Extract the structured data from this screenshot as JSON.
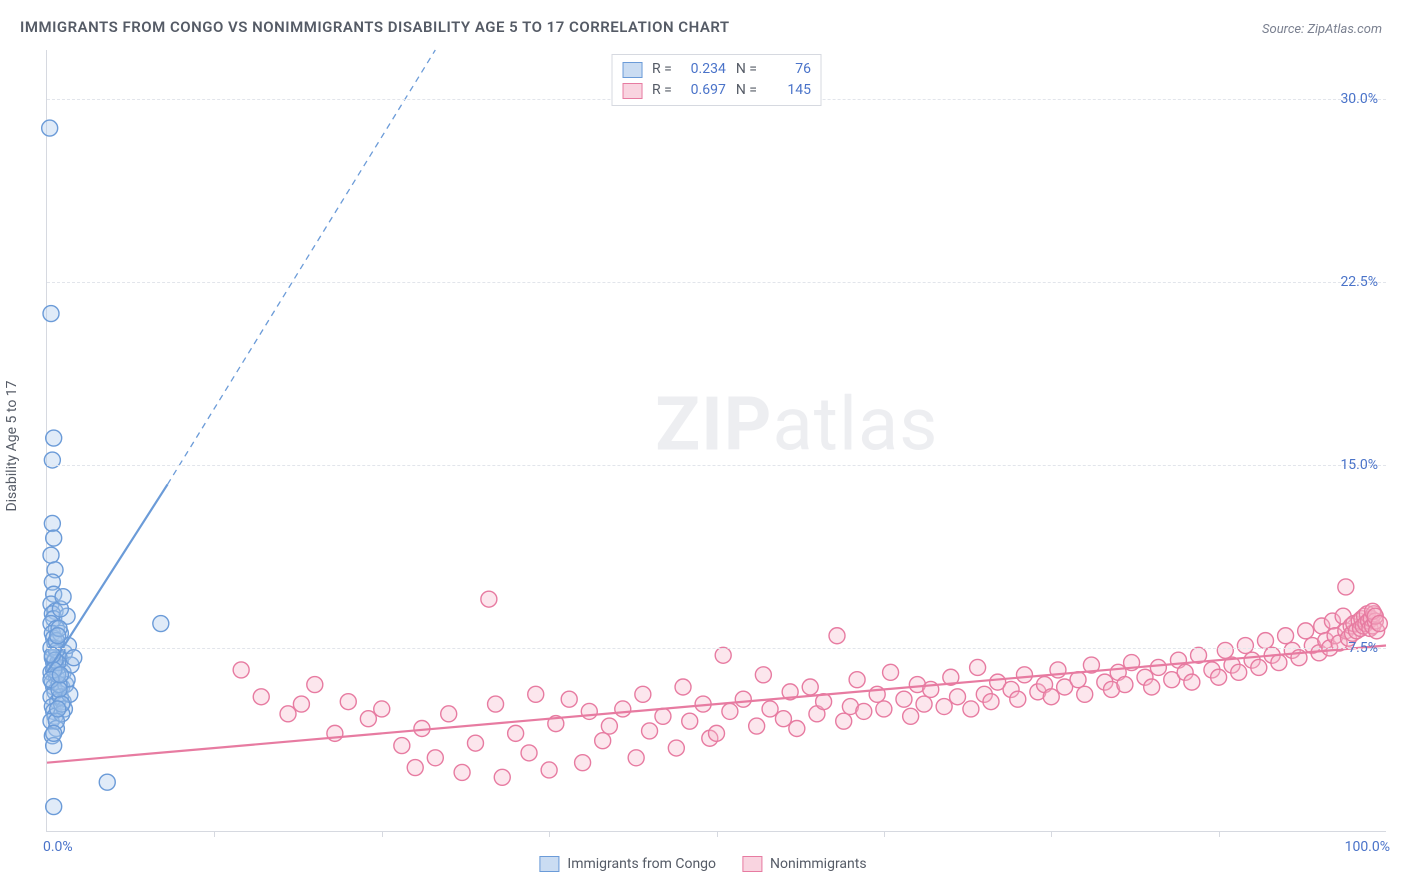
{
  "title": "IMMIGRANTS FROM CONGO VS NONIMMIGRANTS DISABILITY AGE 5 TO 17 CORRELATION CHART",
  "source_label": "Source:",
  "source_name": "ZipAtlas.com",
  "yaxis_title": "Disability Age 5 to 17",
  "watermark_bold": "ZIP",
  "watermark_light": "atlas",
  "chart": {
    "type": "scatter",
    "xlim": [
      0,
      100
    ],
    "ylim": [
      0,
      32
    ],
    "yticks": [
      {
        "value": 7.5,
        "label": "7.5%"
      },
      {
        "value": 15.0,
        "label": "15.0%"
      },
      {
        "value": 22.5,
        "label": "22.5%"
      },
      {
        "value": 30.0,
        "label": "30.0%"
      }
    ],
    "xticks_minor": [
      12.5,
      25,
      37.5,
      50,
      62.5,
      75,
      87.5
    ],
    "xtick_left": {
      "value": 0,
      "label": "0.0%"
    },
    "xtick_right": {
      "value": 100,
      "label": "100.0%"
    },
    "background_color": "#ffffff",
    "grid_color": "#e2e5eb",
    "axis_color": "#d6d9e0",
    "marker_radius": 8,
    "marker_stroke_width": 1.4,
    "marker_fill_opacity": 0.35,
    "trend_line_width": 2.2,
    "trend_dash": "6 5"
  },
  "series": [
    {
      "id": "congo",
      "label": "Immigrants from Congo",
      "color_stroke": "#6b9bd8",
      "color_fill": "#a7c5ea",
      "R": "0.234",
      "N": "76",
      "trend": {
        "x1": 0,
        "y1": 6.5,
        "x2": 9,
        "y2": 14.2,
        "extend_x2": 29,
        "extend_y2": 32
      },
      "points": [
        [
          0.2,
          28.8
        ],
        [
          0.3,
          21.2
        ],
        [
          0.5,
          16.1
        ],
        [
          0.4,
          15.2
        ],
        [
          0.4,
          12.6
        ],
        [
          0.5,
          12.0
        ],
        [
          0.3,
          11.3
        ],
        [
          0.6,
          10.7
        ],
        [
          0.4,
          10.2
        ],
        [
          0.5,
          9.7
        ],
        [
          0.3,
          9.3
        ],
        [
          0.6,
          9.0
        ],
        [
          0.4,
          8.9
        ],
        [
          0.5,
          8.7
        ],
        [
          0.3,
          8.5
        ],
        [
          0.7,
          8.3
        ],
        [
          0.4,
          8.1
        ],
        [
          0.5,
          7.9
        ],
        [
          0.6,
          7.7
        ],
        [
          0.3,
          7.5
        ],
        [
          0.8,
          7.3
        ],
        [
          0.4,
          7.1
        ],
        [
          0.5,
          6.9
        ],
        [
          0.6,
          6.7
        ],
        [
          0.3,
          6.5
        ],
        [
          0.7,
          6.3
        ],
        [
          0.4,
          6.1
        ],
        [
          0.5,
          5.9
        ],
        [
          0.6,
          5.7
        ],
        [
          0.3,
          5.5
        ],
        [
          0.8,
          5.3
        ],
        [
          0.4,
          5.1
        ],
        [
          0.5,
          4.9
        ],
        [
          0.6,
          4.7
        ],
        [
          0.3,
          4.5
        ],
        [
          0.7,
          4.2
        ],
        [
          0.4,
          3.9
        ],
        [
          0.5,
          3.5
        ],
        [
          1.0,
          7.0
        ],
        [
          1.2,
          6.5
        ],
        [
          1.1,
          5.9
        ],
        [
          1.3,
          7.3
        ],
        [
          1.5,
          8.8
        ],
        [
          1.0,
          8.1
        ],
        [
          1.4,
          6.0
        ],
        [
          1.6,
          7.6
        ],
        [
          1.2,
          5.3
        ],
        [
          1.8,
          6.8
        ],
        [
          1.0,
          5.5
        ],
        [
          1.5,
          6.2
        ],
        [
          1.3,
          5.0
        ],
        [
          2.0,
          7.1
        ],
        [
          1.1,
          4.8
        ],
        [
          1.7,
          5.6
        ],
        [
          0.9,
          6.0
        ],
        [
          0.8,
          6.4
        ],
        [
          0.8,
          6.9
        ],
        [
          0.7,
          7.4
        ],
        [
          0.7,
          7.8
        ],
        [
          0.9,
          8.3
        ],
        [
          0.5,
          1.0
        ],
        [
          4.5,
          2.0
        ],
        [
          8.5,
          8.5
        ],
        [
          1.0,
          9.1
        ],
        [
          1.2,
          9.6
        ],
        [
          0.8,
          8.0
        ],
        [
          0.6,
          7.0
        ],
        [
          0.4,
          7.2
        ],
        [
          0.5,
          6.6
        ],
        [
          0.3,
          6.2
        ],
        [
          0.9,
          5.8
        ],
        [
          1.1,
          5.2
        ],
        [
          0.7,
          4.5
        ],
        [
          0.5,
          4.0
        ],
        [
          0.8,
          5.0
        ],
        [
          1.0,
          6.4
        ]
      ]
    },
    {
      "id": "nonimmigrants",
      "label": "Nonimmigrants",
      "color_stroke": "#e77ba1",
      "color_fill": "#f5b8cc",
      "R": "0.697",
      "N": "145",
      "trend": {
        "x1": 0,
        "y1": 2.8,
        "x2": 100,
        "y2": 7.6
      },
      "points": [
        [
          14.5,
          6.6
        ],
        [
          16.0,
          5.5
        ],
        [
          18.0,
          4.8
        ],
        [
          19.0,
          5.2
        ],
        [
          20.0,
          6.0
        ],
        [
          21.5,
          4.0
        ],
        [
          22.5,
          5.3
        ],
        [
          24.0,
          4.6
        ],
        [
          25.0,
          5.0
        ],
        [
          26.5,
          3.5
        ],
        [
          27.5,
          2.6
        ],
        [
          28.0,
          4.2
        ],
        [
          29.0,
          3.0
        ],
        [
          30.0,
          4.8
        ],
        [
          31.0,
          2.4
        ],
        [
          32.0,
          3.6
        ],
        [
          33.0,
          9.5
        ],
        [
          33.5,
          5.2
        ],
        [
          34.0,
          2.2
        ],
        [
          35.0,
          4.0
        ],
        [
          36.0,
          3.2
        ],
        [
          36.5,
          5.6
        ],
        [
          37.5,
          2.5
        ],
        [
          38.0,
          4.4
        ],
        [
          39.0,
          5.4
        ],
        [
          40.0,
          2.8
        ],
        [
          40.5,
          4.9
        ],
        [
          41.5,
          3.7
        ],
        [
          42.0,
          4.3
        ],
        [
          43.0,
          5.0
        ],
        [
          44.0,
          3.0
        ],
        [
          44.5,
          5.6
        ],
        [
          45.0,
          4.1
        ],
        [
          46.0,
          4.7
        ],
        [
          47.0,
          3.4
        ],
        [
          47.5,
          5.9
        ],
        [
          48.0,
          4.5
        ],
        [
          49.0,
          5.2
        ],
        [
          49.5,
          3.8
        ],
        [
          50.0,
          4.0
        ],
        [
          50.5,
          7.2
        ],
        [
          51.0,
          4.9
        ],
        [
          52.0,
          5.4
        ],
        [
          53.0,
          4.3
        ],
        [
          53.5,
          6.4
        ],
        [
          54.0,
          5.0
        ],
        [
          55.0,
          4.6
        ],
        [
          55.5,
          5.7
        ],
        [
          56.0,
          4.2
        ],
        [
          57.0,
          5.9
        ],
        [
          57.5,
          4.8
        ],
        [
          58.0,
          5.3
        ],
        [
          59.0,
          8.0
        ],
        [
          59.5,
          4.5
        ],
        [
          60.0,
          5.1
        ],
        [
          60.5,
          6.2
        ],
        [
          61.0,
          4.9
        ],
        [
          62.0,
          5.6
        ],
        [
          62.5,
          5.0
        ],
        [
          63.0,
          6.5
        ],
        [
          64.0,
          5.4
        ],
        [
          64.5,
          4.7
        ],
        [
          65.0,
          6.0
        ],
        [
          65.5,
          5.2
        ],
        [
          66.0,
          5.8
        ],
        [
          67.0,
          5.1
        ],
        [
          67.5,
          6.3
        ],
        [
          68.0,
          5.5
        ],
        [
          69.0,
          5.0
        ],
        [
          69.5,
          6.7
        ],
        [
          70.0,
          5.6
        ],
        [
          70.5,
          5.3
        ],
        [
          71.0,
          6.1
        ],
        [
          72.0,
          5.8
        ],
        [
          72.5,
          5.4
        ],
        [
          73.0,
          6.4
        ],
        [
          74.0,
          5.7
        ],
        [
          74.5,
          6.0
        ],
        [
          75.0,
          5.5
        ],
        [
          75.5,
          6.6
        ],
        [
          76.0,
          5.9
        ],
        [
          77.0,
          6.2
        ],
        [
          77.5,
          5.6
        ],
        [
          78.0,
          6.8
        ],
        [
          79.0,
          6.1
        ],
        [
          79.5,
          5.8
        ],
        [
          80.0,
          6.5
        ],
        [
          80.5,
          6.0
        ],
        [
          81.0,
          6.9
        ],
        [
          82.0,
          6.3
        ],
        [
          82.5,
          5.9
        ],
        [
          83.0,
          6.7
        ],
        [
          84.0,
          6.2
        ],
        [
          84.5,
          7.0
        ],
        [
          85.0,
          6.5
        ],
        [
          85.5,
          6.1
        ],
        [
          86.0,
          7.2
        ],
        [
          87.0,
          6.6
        ],
        [
          87.5,
          6.3
        ],
        [
          88.0,
          7.4
        ],
        [
          88.5,
          6.8
        ],
        [
          89.0,
          6.5
        ],
        [
          89.5,
          7.6
        ],
        [
          90.0,
          7.0
        ],
        [
          90.5,
          6.7
        ],
        [
          91.0,
          7.8
        ],
        [
          91.5,
          7.2
        ],
        [
          92.0,
          6.9
        ],
        [
          92.5,
          8.0
        ],
        [
          93.0,
          7.4
        ],
        [
          93.5,
          7.1
        ],
        [
          94.0,
          8.2
        ],
        [
          94.5,
          7.6
        ],
        [
          95.0,
          7.3
        ],
        [
          95.2,
          8.4
        ],
        [
          95.5,
          7.8
        ],
        [
          95.8,
          7.5
        ],
        [
          96.0,
          8.6
        ],
        [
          96.2,
          8.0
        ],
        [
          96.5,
          7.7
        ],
        [
          96.8,
          8.8
        ],
        [
          97.0,
          8.2
        ],
        [
          97.2,
          7.9
        ],
        [
          97.4,
          8.4
        ],
        [
          97.5,
          8.1
        ],
        [
          97.6,
          8.5
        ],
        [
          97.8,
          8.2
        ],
        [
          98.0,
          8.6
        ],
        [
          98.1,
          8.3
        ],
        [
          98.2,
          8.7
        ],
        [
          98.3,
          8.4
        ],
        [
          98.4,
          8.8
        ],
        [
          98.5,
          8.5
        ],
        [
          98.6,
          8.9
        ],
        [
          98.7,
          8.6
        ],
        [
          98.8,
          8.3
        ],
        [
          98.9,
          8.7
        ],
        [
          99.0,
          8.4
        ],
        [
          99.1,
          8.9
        ],
        [
          99.2,
          8.6
        ],
        [
          99.3,
          8.2
        ],
        [
          97.0,
          10.0
        ],
        [
          99.0,
          9.0
        ],
        [
          99.2,
          8.8
        ],
        [
          99.5,
          8.5
        ]
      ]
    }
  ],
  "legend_top": {
    "R_label": "R =",
    "N_label": "N ="
  }
}
